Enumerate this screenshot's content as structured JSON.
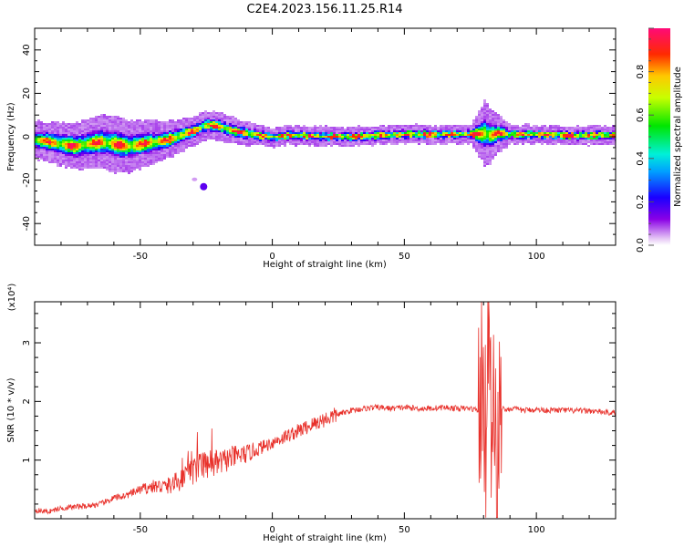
{
  "title": "C2E4.2023.156.11.25.R14",
  "chart_data": [
    {
      "type": "heatmap",
      "xlabel": "Height of straight line (km)",
      "ylabel": "Frequency (Hz)",
      "xlim": [
        -90,
        130
      ],
      "ylim": [
        -50,
        50
      ],
      "xticks": [
        -50,
        0,
        50,
        100
      ],
      "xtick_labels": [
        "-50",
        "0",
        "50",
        "100"
      ],
      "yticks": [
        -40,
        -20,
        0,
        20,
        40
      ],
      "ytick_labels": [
        "-40",
        "-20",
        "0",
        "20",
        "40"
      ],
      "colorbar": {
        "label": "Normalized spectral amplitude",
        "range": [
          0,
          1
        ],
        "ticks": [
          0.0,
          0.2,
          0.4,
          0.6,
          0.8
        ],
        "tick_labels": [
          "0.0",
          "0.2",
          "0.4",
          "0.6",
          "0.8"
        ],
        "colormap": "rainbow (purple-blue-cyan-green-yellow-red-pink)"
      },
      "ridge": {
        "x": [
          -90,
          -85,
          -80,
          -75,
          -70,
          -65,
          -60,
          -55,
          -50,
          -45,
          -40,
          -35,
          -30,
          -25,
          -20,
          -15,
          -10,
          -5,
          0,
          5,
          10,
          20,
          30,
          40,
          50,
          60,
          70,
          75,
          80,
          82,
          85,
          90,
          100,
          110,
          120,
          130
        ],
        "freq": [
          -1,
          -2,
          -3,
          -4,
          -3,
          -2,
          -3,
          -4,
          -3,
          -2,
          -1,
          1,
          3,
          6,
          5,
          3,
          2,
          1,
          0,
          1,
          1,
          0.5,
          0.5,
          1,
          1.5,
          1.5,
          1.5,
          1.5,
          2,
          1,
          2,
          1.5,
          1.5,
          1,
          1,
          1
        ]
      },
      "spread": {
        "x": [
          -90,
          -75,
          -60,
          -50,
          -40,
          -30,
          -25,
          -20,
          -10,
          0,
          30,
          75,
          80,
          85,
          90,
          130
        ],
        "halfwidth": [
          4,
          5,
          6,
          5,
          4,
          3,
          3,
          3,
          2.5,
          2,
          2,
          2,
          7,
          4,
          2,
          2
        ]
      },
      "isolated_blob": {
        "x": -26,
        "freq": -23
      }
    },
    {
      "type": "line",
      "xlabel": "Height of straight line (km)",
      "ylabel": "SNR (10 * v/v)",
      "yscale_label": "(x10⁴)",
      "xlim": [
        -90,
        130
      ],
      "ylim": [
        0,
        3.7
      ],
      "xticks": [
        -50,
        0,
        50,
        100
      ],
      "xtick_labels": [
        "-50",
        "0",
        "50",
        "100"
      ],
      "yticks": [
        1,
        2,
        3
      ],
      "ytick_labels": [
        "1",
        "2",
        "3"
      ],
      "line_color": "#e8302a",
      "series": [
        {
          "x": [
            -90,
            -85,
            -80,
            -75,
            -70,
            -65,
            -60,
            -55,
            -50,
            -45,
            -40,
            -35,
            -30,
            -25,
            -20,
            -15,
            -10,
            -5,
            0,
            5,
            10,
            15,
            20,
            25,
            30,
            35,
            40,
            45,
            50,
            55,
            60,
            65,
            70,
            75,
            78,
            80,
            81,
            82,
            83,
            84,
            85,
            86,
            88,
            90,
            95,
            100,
            105,
            110,
            115,
            120,
            125,
            130
          ],
          "values": [
            0.15,
            0.12,
            0.18,
            0.2,
            0.22,
            0.25,
            0.35,
            0.4,
            0.5,
            0.55,
            0.55,
            0.65,
            0.8,
            0.9,
            0.95,
            1.05,
            1.1,
            1.2,
            1.3,
            1.4,
            1.5,
            1.6,
            1.7,
            1.78,
            1.85,
            1.88,
            1.9,
            1.88,
            1.9,
            1.88,
            1.88,
            1.9,
            1.88,
            1.88,
            1.85,
            2.5,
            1.0,
            3.7,
            0.6,
            2.8,
            0.1,
            2.0,
            1.85,
            1.88,
            1.85,
            1.86,
            1.85,
            1.85,
            1.84,
            1.84,
            1.82,
            1.8
          ]
        }
      ]
    }
  ]
}
